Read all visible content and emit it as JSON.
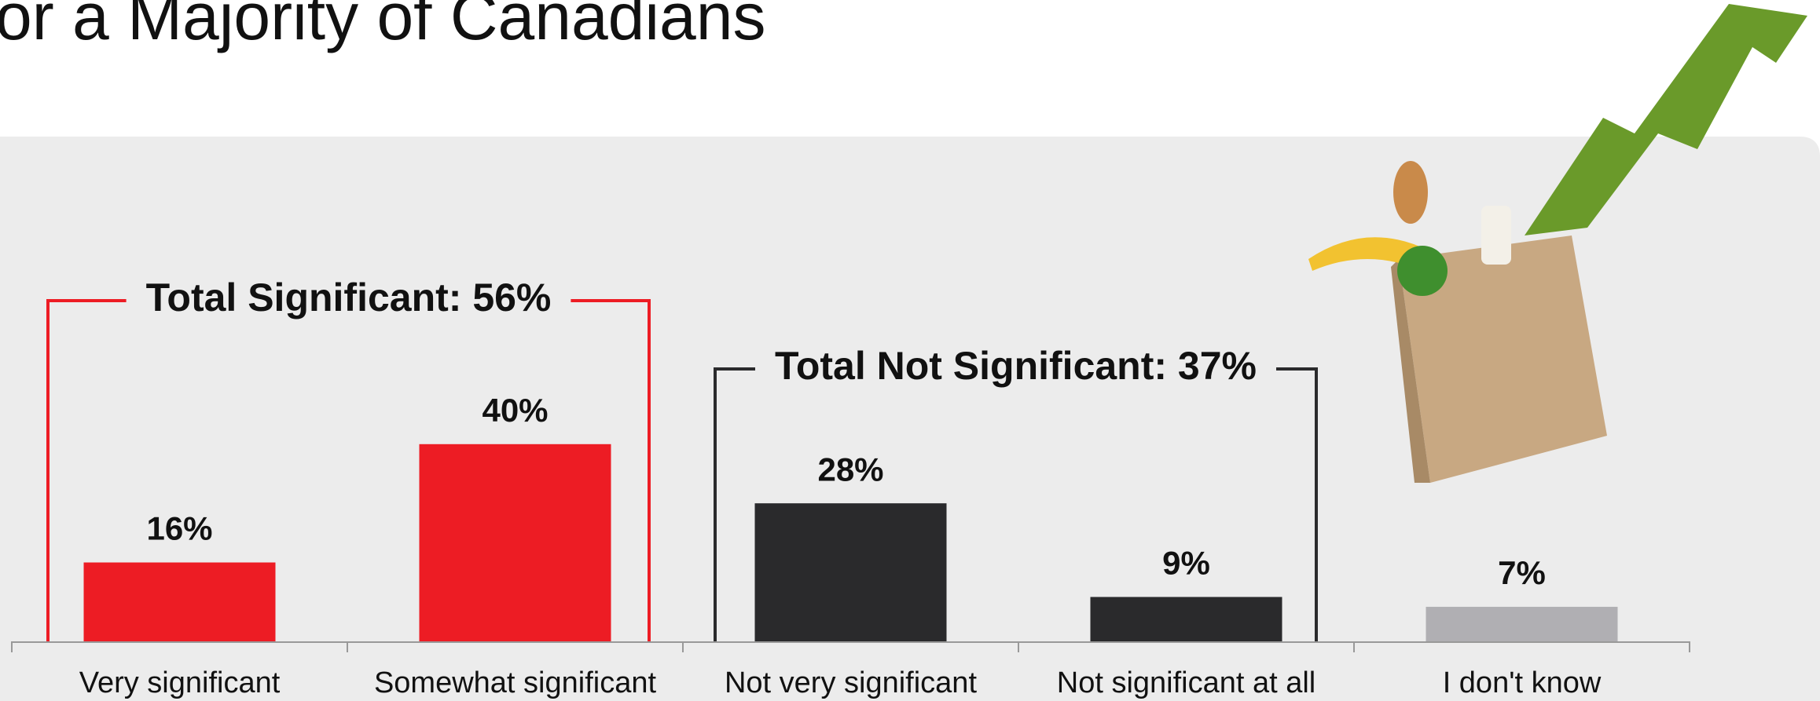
{
  "chart_data": {
    "type": "bar",
    "title": "or a Majority of Canadians",
    "categories": [
      "Very significant",
      "Somewhat significant",
      "Not very significant",
      "Not significant at all",
      "I don't know"
    ],
    "values": [
      16,
      40,
      28,
      9,
      7
    ],
    "value_labels": [
      "16%",
      "40%",
      "28%",
      "9%",
      "7%"
    ],
    "colors": [
      "#ed1c24",
      "#ed1c24",
      "#2a2a2c",
      "#2a2a2c",
      "#b0afb3"
    ],
    "ylim": [
      0,
      100
    ],
    "annotations": [
      {
        "text": "Total Significant: 56%",
        "color": "#ed1c24"
      },
      {
        "text": "Total Not Significant: 37%",
        "color": "#2a2a2c"
      }
    ]
  }
}
